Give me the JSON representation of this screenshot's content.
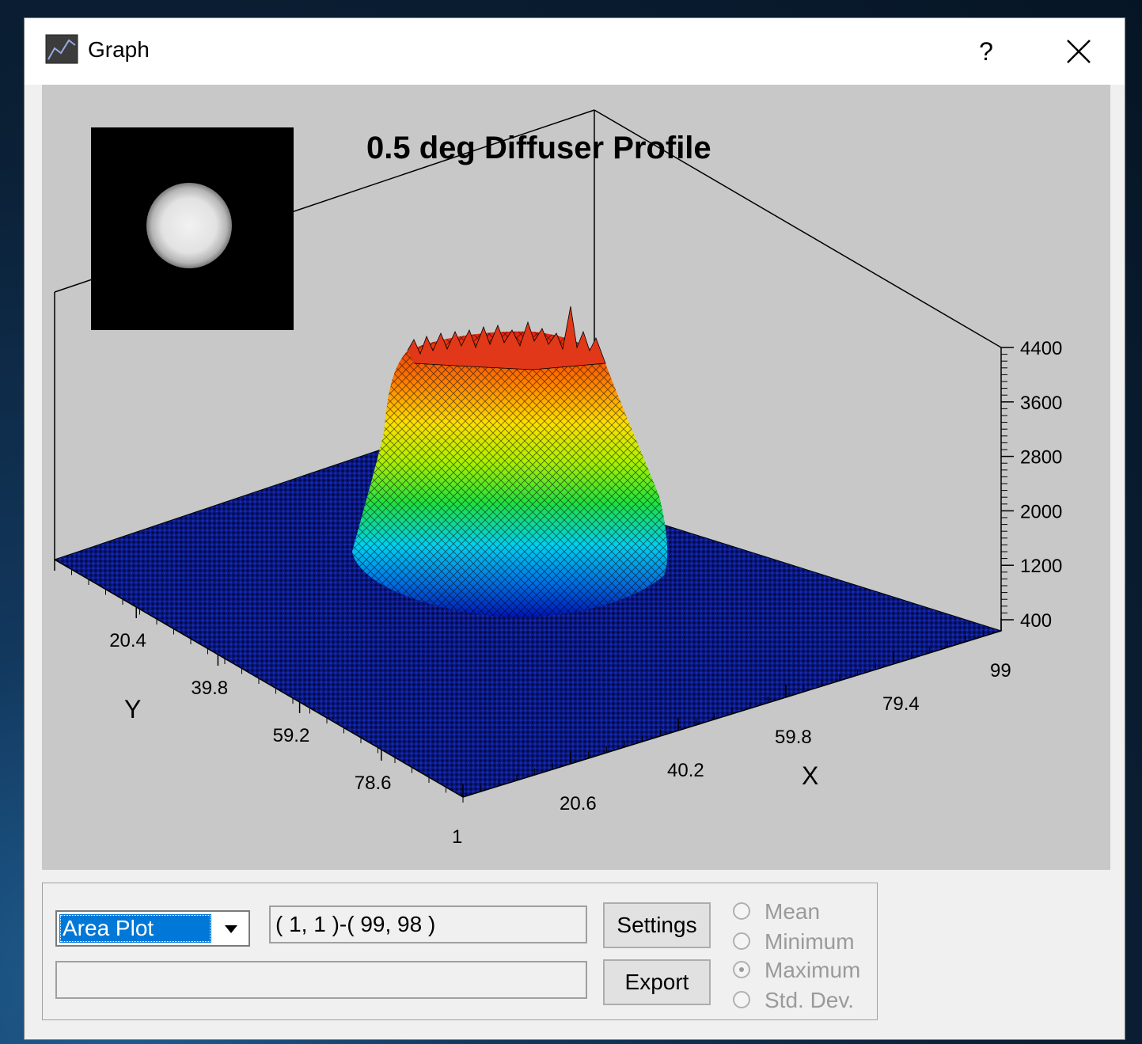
{
  "window": {
    "title": "Graph",
    "help_label": "?",
    "close_icon": "close-icon",
    "app_icon": "graph-icon"
  },
  "plot": {
    "title": "0.5 deg Diffuser Profile",
    "z_ticks": [
      "4400",
      "3600",
      "2800",
      "2000",
      "1200",
      "400"
    ],
    "y_ticks": [
      "1",
      "20.4",
      "39.8",
      "59.2",
      "78.6"
    ],
    "x_ticks": [
      "1",
      "20.6",
      "40.2",
      "59.8",
      "79.4",
      "99"
    ],
    "x_label": "X",
    "y_label": "Y"
  },
  "chart_data": {
    "type": "surface",
    "title": "0.5 deg Diffuser Profile",
    "xlabel": "X",
    "ylabel": "Y",
    "x_ticks": [
      1,
      20.6,
      40.2,
      59.8,
      79.4,
      99
    ],
    "y_ticks": [
      1,
      20.4,
      39.8,
      59.2,
      78.6
    ],
    "z_ticks": [
      400,
      1200,
      2000,
      2800,
      3600,
      4400
    ],
    "xlim": [
      1,
      99
    ],
    "ylim": [
      1,
      98
    ],
    "zlim": [
      400,
      4400
    ],
    "colormap": [
      "#00008b",
      "#00bfff",
      "#00ff00",
      "#ffff00",
      "#ff4500"
    ]
  },
  "controls": {
    "plot_type": "Area Plot",
    "range": "( 1, 1 )-( 99, 98 )",
    "status": "",
    "settings_label": "Settings",
    "export_label": "Export",
    "radios": [
      {
        "label": "Mean",
        "selected": false
      },
      {
        "label": "Minimum",
        "selected": false
      },
      {
        "label": "Maximum",
        "selected": true
      },
      {
        "label": "Std. Dev.",
        "selected": false
      }
    ]
  }
}
